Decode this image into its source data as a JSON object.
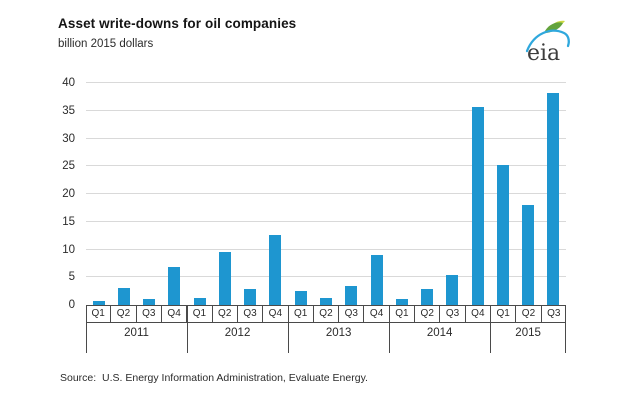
{
  "header": {
    "title": "Asset write-downs for oil companies",
    "subtitle": "billion 2015 dollars",
    "logo_text": "eia"
  },
  "chart_data": {
    "type": "bar",
    "title": "Asset write-downs for oil companies",
    "ylabel": "billion 2015 dollars",
    "xlabel": "",
    "categories": [
      "Q1",
      "Q2",
      "Q3",
      "Q4",
      "Q1",
      "Q2",
      "Q3",
      "Q4",
      "Q1",
      "Q2",
      "Q3",
      "Q4",
      "Q1",
      "Q2",
      "Q3",
      "Q4",
      "Q1",
      "Q2",
      "Q3"
    ],
    "year_groups": [
      {
        "label": "2011",
        "span": 4
      },
      {
        "label": "2012",
        "span": 4
      },
      {
        "label": "2013",
        "span": 4
      },
      {
        "label": "2014",
        "span": 4
      },
      {
        "label": "2015",
        "span": 3
      }
    ],
    "series": [
      {
        "name": "Asset write-downs",
        "values": [
          0.7,
          3.0,
          1.1,
          6.8,
          1.3,
          9.5,
          2.8,
          12.6,
          2.5,
          1.2,
          3.4,
          9.1,
          1.1,
          2.9,
          5.4,
          35.6,
          25.2,
          18.0,
          38.2
        ]
      }
    ],
    "ylim": [
      0,
      40
    ],
    "yticks": [
      0,
      5,
      10,
      15,
      20,
      25,
      30,
      35,
      40
    ],
    "grid": "horizontal",
    "legend": "none",
    "bar_color": "#1e96d0",
    "gridline_color": "#d9d9d9",
    "axis_color": "#4a4a4a",
    "logo_colors": {
      "blue": "#2fa8dd",
      "green": "#63a33c",
      "yellow": "#cdd944"
    }
  },
  "footer": {
    "source": "Source:  U.S. Energy Information Administration, Evaluate Energy."
  }
}
